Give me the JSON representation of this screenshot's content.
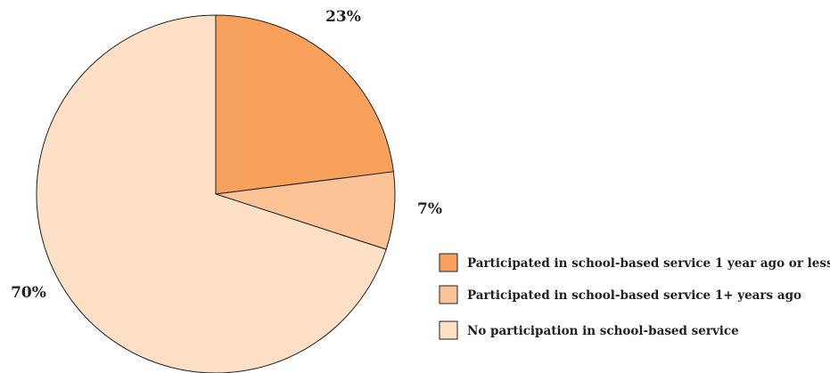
{
  "chart_data": {
    "type": "pie",
    "slices": [
      {
        "label": "Participated in school-based service 1 year ago or less",
        "value": 23,
        "value_label": "23%",
        "color": "#f8a15d"
      },
      {
        "label": "Participated in school-based service 1+ years ago",
        "value": 7,
        "value_label": "7%",
        "color": "#fcc496"
      },
      {
        "label": "No participation in school-based service",
        "value": 70,
        "value_label": "70%",
        "color": "#fde0c5"
      }
    ],
    "start_angle": "12 o'clock",
    "direction": "clockwise",
    "legend_position": "bottom-right",
    "outline_color": "#231f20"
  }
}
